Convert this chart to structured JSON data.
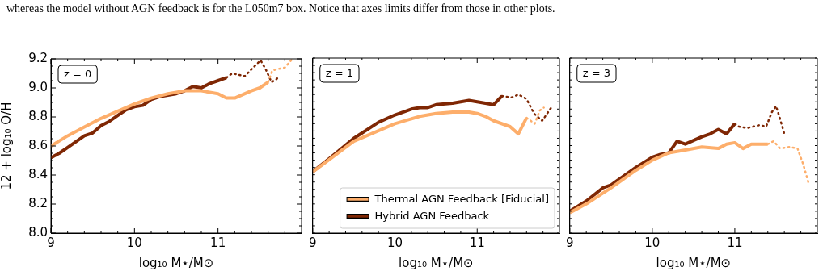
{
  "chart_data": [
    {
      "type": "line",
      "title": "z = 0",
      "xlabel": "log₁₀ M⋆/M⊙",
      "ylabel": "12 + log₁₀ O/H",
      "line_style": "solid",
      "marker": "none",
      "legend": false,
      "annotations": [
        "whereas the model without AGN feedback is for the L050m7 box. Notice that axes limits differ from those in other plots."
      ],
      "xlim": [
        9,
        12
      ],
      "ylim": [
        8.0,
        9.2
      ],
      "xticks": [
        9,
        {
          "value": 9.2,
          "label": null
        },
        {
          "value": 9.4,
          "label": null
        },
        {
          "value": 9.6,
          "label": null
        },
        {
          "value": 9.8,
          "label": null
        },
        10,
        {
          "value": 10.2,
          "label": null
        },
        {
          "value": 10.4,
          "label": null
        },
        {
          "value": 10.6,
          "label": null
        },
        {
          "value": 10.8,
          "label": null
        },
        11,
        {
          "value": 11.2,
          "label": null
        },
        {
          "value": 11.4,
          "label": null
        },
        {
          "value": 11.6,
          "label": null
        },
        {
          "value": 11.8,
          "label": null
        }
      ],
      "yticks": [
        {
          "value": 8,
          "label": "8.0"
        },
        {
          "value": 8.05,
          "label": null
        },
        {
          "value": 8.1,
          "label": null
        },
        {
          "value": 8.15,
          "label": null
        },
        8.2,
        {
          "value": 8.25,
          "label": null
        },
        {
          "value": 8.3,
          "label": null
        },
        {
          "value": 8.35,
          "label": null
        },
        8.4,
        {
          "value": 8.45,
          "label": null
        },
        {
          "value": 8.5,
          "label": null
        },
        {
          "value": 8.55,
          "label": null
        },
        8.6,
        {
          "value": 8.65,
          "label": null
        },
        {
          "value": 8.7,
          "label": null
        },
        {
          "value": 8.75,
          "label": null
        },
        8.8,
        {
          "value": 8.85,
          "label": null
        },
        {
          "value": 8.9,
          "label": null
        },
        {
          "value": 8.95,
          "label": null
        },
        {
          "value": 9,
          "label": "9.0"
        },
        {
          "value": 9.05,
          "label": null
        },
        {
          "value": 9.1,
          "label": null
        },
        {
          "value": 9.15,
          "label": null
        },
        9.2
      ],
      "series": [
        {
          "color": "#fdae6b",
          "x": [
            9,
            9.2,
            9.4,
            9.6,
            9.8,
            10,
            10.2,
            10.4,
            10.6,
            10.8,
            11,
            11.1,
            11.2,
            11.4,
            11.5,
            11.6
          ],
          "values": [
            8.6,
            8.67,
            8.73,
            8.79,
            8.84,
            8.89,
            8.93,
            8.96,
            8.98,
            8.98,
            8.96,
            8.93,
            8.93,
            8.98,
            9.0,
            9.04
          ]
        },
        {
          "color": "#7f2704",
          "x": [
            9,
            9.1,
            9.2,
            9.3,
            9.4,
            9.5,
            9.6,
            9.7,
            9.8,
            9.9,
            10,
            10.1,
            10.2,
            10.3,
            10.4,
            10.5,
            10.6,
            10.7,
            10.8,
            10.9,
            11,
            11.1
          ],
          "values": [
            8.52,
            8.55,
            8.59,
            8.63,
            8.67,
            8.69,
            8.74,
            8.77,
            8.81,
            8.85,
            8.87,
            8.88,
            8.92,
            8.94,
            8.95,
            8.96,
            8.98,
            9.01,
            9.0,
            9.03,
            9.05,
            9.07
          ]
        },
        {
          "color": "#fdae6b",
          "line_style": "dotted",
          "x": [
            11.6,
            11.65,
            11.72,
            11.8,
            11.89
          ],
          "values": [
            9.04,
            9.12,
            9.13,
            9.14,
            9.2
          ]
        },
        {
          "color": "#7f2704",
          "line_style": "dotted",
          "x": [
            11.1,
            11.17,
            11.25,
            11.32,
            11.42,
            11.51,
            11.57,
            11.64,
            11.7,
            11.73
          ],
          "values": [
            9.07,
            9.1,
            9.09,
            9.08,
            9.14,
            9.19,
            9.13,
            9.04,
            9.06,
            9.08
          ]
        }
      ]
    },
    {
      "type": "line",
      "title": "z = 1",
      "xlabel": "log₁₀ M⋆/M⊙",
      "line_style": "solid",
      "marker": "none",
      "legend": "bottom right",
      "tick_labels": "x",
      "xlim": [
        9,
        12
      ],
      "ylim": [
        8.0,
        9.2
      ],
      "xticks": [
        9,
        {
          "value": 9.2,
          "label": null
        },
        {
          "value": 9.4,
          "label": null
        },
        {
          "value": 9.6,
          "label": null
        },
        {
          "value": 9.8,
          "label": null
        },
        10,
        {
          "value": 10.2,
          "label": null
        },
        {
          "value": 10.4,
          "label": null
        },
        {
          "value": 10.6,
          "label": null
        },
        {
          "value": 10.8,
          "label": null
        },
        11,
        {
          "value": 11.2,
          "label": null
        },
        {
          "value": 11.4,
          "label": null
        },
        {
          "value": 11.6,
          "label": null
        },
        {
          "value": 11.8,
          "label": null
        }
      ],
      "yticks": [
        {
          "value": 8,
          "label": null
        },
        {
          "value": 8.05,
          "label": null
        },
        {
          "value": 8.1,
          "label": null
        },
        {
          "value": 8.15,
          "label": null
        },
        {
          "value": 8.2,
          "label": null
        },
        {
          "value": 8.25,
          "label": null
        },
        {
          "value": 8.3,
          "label": null
        },
        {
          "value": 8.35,
          "label": null
        },
        {
          "value": 8.4,
          "label": null
        },
        {
          "value": 8.45,
          "label": null
        },
        {
          "value": 8.5,
          "label": null
        },
        {
          "value": 8.55,
          "label": null
        },
        {
          "value": 8.6,
          "label": null
        },
        {
          "value": 8.65,
          "label": null
        },
        {
          "value": 8.7,
          "label": null
        },
        {
          "value": 8.75,
          "label": null
        },
        {
          "value": 8.8,
          "label": null
        },
        {
          "value": 8.85,
          "label": null
        },
        {
          "value": 8.9,
          "label": null
        },
        {
          "value": 8.95,
          "label": null
        },
        {
          "value": 9,
          "label": null
        },
        {
          "value": 9.05,
          "label": null
        },
        {
          "value": 9.1,
          "label": null
        },
        {
          "value": 9.15,
          "label": null
        },
        {
          "value": 9.2,
          "label": null
        }
      ],
      "series": [
        {
          "name": "Thermal AGN Feedback [Fiducial]",
          "color": "#fdae6b",
          "x": [
            9,
            9.5,
            10,
            10.3,
            10.5,
            10.7,
            10.9,
            11,
            11.1,
            11.2,
            11.4,
            11.5,
            11.6
          ],
          "values": [
            8.42,
            8.63,
            8.75,
            8.8,
            8.82,
            8.83,
            8.83,
            8.82,
            8.8,
            8.77,
            8.73,
            8.68,
            8.79
          ]
        },
        {
          "name": "Hybrid AGN Feedback",
          "color": "#7f2704",
          "x": [
            9,
            9.2,
            9.5,
            9.8,
            10,
            10.2,
            10.3,
            10.4,
            10.5,
            10.7,
            10.8,
            10.9,
            11,
            11.1,
            11.2,
            11.3
          ],
          "values": [
            8.42,
            8.51,
            8.65,
            8.76,
            8.81,
            8.85,
            8.86,
            8.86,
            8.88,
            8.89,
            8.9,
            8.91,
            8.9,
            8.89,
            8.88,
            8.94
          ]
        },
        {
          "color": "#fdae6b",
          "line_style": "dotted",
          "x": [
            11.6,
            11.7,
            11.76,
            11.81
          ],
          "values": [
            8.79,
            8.75,
            8.84,
            8.86
          ]
        },
        {
          "color": "#7f2704",
          "line_style": "dotted",
          "x": [
            11.3,
            11.42,
            11.5,
            11.6,
            11.69,
            11.79,
            11.9
          ],
          "values": [
            8.94,
            8.93,
            8.95,
            8.92,
            8.82,
            8.77,
            8.86
          ]
        }
      ]
    },
    {
      "type": "line",
      "title": "z = 3",
      "xlabel": "log₁₀ M⋆/M⊙",
      "line_style": "solid",
      "marker": "none",
      "legend": false,
      "tick_labels": "x",
      "xlim": [
        9,
        12
      ],
      "ylim": [
        8.0,
        9.2
      ],
      "xticks": [
        9,
        {
          "value": 9.2,
          "label": null
        },
        {
          "value": 9.4,
          "label": null
        },
        {
          "value": 9.6,
          "label": null
        },
        {
          "value": 9.8,
          "label": null
        },
        10,
        {
          "value": 10.2,
          "label": null
        },
        {
          "value": 10.4,
          "label": null
        },
        {
          "value": 10.6,
          "label": null
        },
        {
          "value": 10.8,
          "label": null
        },
        11,
        {
          "value": 11.2,
          "label": null
        },
        {
          "value": 11.4,
          "label": null
        },
        {
          "value": 11.6,
          "label": null
        },
        {
          "value": 11.8,
          "label": null
        }
      ],
      "yticks": [
        {
          "value": 8,
          "label": null
        },
        {
          "value": 8.05,
          "label": null
        },
        {
          "value": 8.1,
          "label": null
        },
        {
          "value": 8.15,
          "label": null
        },
        {
          "value": 8.2,
          "label": null
        },
        {
          "value": 8.25,
          "label": null
        },
        {
          "value": 8.3,
          "label": null
        },
        {
          "value": 8.35,
          "label": null
        },
        {
          "value": 8.4,
          "label": null
        },
        {
          "value": 8.45,
          "label": null
        },
        {
          "value": 8.5,
          "label": null
        },
        {
          "value": 8.55,
          "label": null
        },
        {
          "value": 8.6,
          "label": null
        },
        {
          "value": 8.65,
          "label": null
        },
        {
          "value": 8.7,
          "label": null
        },
        {
          "value": 8.75,
          "label": null
        },
        {
          "value": 8.8,
          "label": null
        },
        {
          "value": 8.85,
          "label": null
        },
        {
          "value": 8.9,
          "label": null
        },
        {
          "value": 8.95,
          "label": null
        },
        {
          "value": 9,
          "label": null
        },
        {
          "value": 9.05,
          "label": null
        },
        {
          "value": 9.1,
          "label": null
        },
        {
          "value": 9.15,
          "label": null
        },
        {
          "value": 9.2,
          "label": null
        }
      ],
      "series": [
        {
          "color": "#fdae6b",
          "x": [
            9,
            9.2,
            9.5,
            9.8,
            10,
            10.2,
            10.4,
            10.6,
            10.8,
            10.9,
            11,
            11.1,
            11.2,
            11.3,
            11.4
          ],
          "values": [
            8.14,
            8.2,
            8.31,
            8.43,
            8.5,
            8.55,
            8.57,
            8.59,
            8.58,
            8.61,
            8.62,
            8.58,
            8.61,
            8.61,
            8.61
          ]
        },
        {
          "color": "#7f2704",
          "x": [
            9,
            9.2,
            9.4,
            9.5,
            9.7,
            9.8,
            10,
            10.1,
            10.2,
            10.3,
            10.4,
            10.6,
            10.7,
            10.8,
            10.9,
            11
          ],
          "values": [
            8.15,
            8.22,
            8.31,
            8.33,
            8.41,
            8.45,
            8.52,
            8.54,
            8.55,
            8.63,
            8.61,
            8.66,
            8.68,
            8.71,
            8.68,
            8.75
          ]
        },
        {
          "color": "#fdae6b",
          "line_style": "dotted",
          "x": [
            11.4,
            11.47,
            11.55,
            11.66,
            11.76,
            11.83,
            11.89
          ],
          "values": [
            8.61,
            8.63,
            8.58,
            8.59,
            8.58,
            8.47,
            8.35
          ]
        },
        {
          "color": "#7f2704",
          "line_style": "dotted",
          "x": [
            11,
            11.05,
            11.15,
            11.3,
            11.38,
            11.45,
            11.5,
            11.55,
            11.6
          ],
          "values": [
            8.75,
            8.73,
            8.72,
            8.74,
            8.73,
            8.83,
            8.87,
            8.78,
            8.68
          ]
        }
      ]
    }
  ]
}
